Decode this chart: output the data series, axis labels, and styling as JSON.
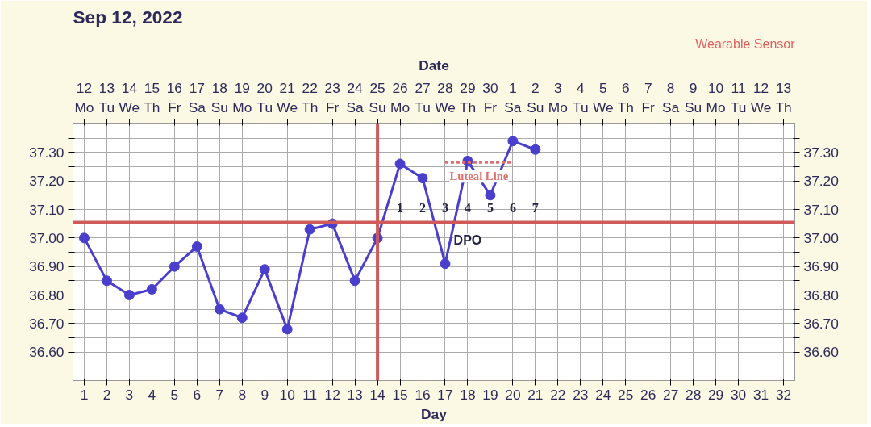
{
  "chart_data": {
    "type": "line",
    "title": "Sep 12, 2022",
    "xlabel": "Day",
    "x2label": "Date",
    "x": [
      1,
      2,
      3,
      4,
      5,
      6,
      7,
      8,
      9,
      10,
      11,
      12,
      13,
      14,
      15,
      16,
      17,
      18,
      19,
      20,
      21
    ],
    "series": [
      {
        "color": "#4a3fcc",
        "values": [
          37.0,
          36.85,
          36.8,
          36.82,
          36.9,
          36.97,
          36.75,
          36.72,
          36.89,
          36.68,
          37.03,
          37.05,
          36.85,
          37.0,
          37.26,
          37.21,
          36.91,
          37.27,
          37.15,
          37.34,
          37.31
        ],
        "marker": "circle",
        "line_style": "solid"
      },
      {
        "name": "Luteal Line",
        "color": "#e07070",
        "x": [
          17,
          20
        ],
        "values": [
          37.265,
          37.265
        ],
        "marker": "none",
        "line_style": "dashed"
      }
    ],
    "xlim": [
      0.5,
      32.5
    ],
    "xticks": [
      1,
      2,
      3,
      4,
      5,
      6,
      7,
      8,
      9,
      10,
      11,
      12,
      13,
      14,
      15,
      16,
      17,
      18,
      19,
      20,
      21,
      22,
      23,
      24,
      25,
      26,
      27,
      28,
      29,
      30,
      31,
      32
    ],
    "x2lim": [
      "2022-09-11T12:00",
      "2022-10-13T12:00"
    ],
    "x2ticks": [
      {
        "value": "2022-09-12",
        "label": "12\nMo"
      },
      {
        "value": "2022-09-13",
        "label": "13\nTu"
      },
      {
        "value": "2022-09-14",
        "label": "14\nWe"
      },
      {
        "value": "2022-09-15",
        "label": "15\nTh"
      },
      {
        "value": "2022-09-16",
        "label": "16\nFr"
      },
      {
        "value": "2022-09-17",
        "label": "17\nSa"
      },
      {
        "value": "2022-09-18",
        "label": "18\nSu"
      },
      {
        "value": "2022-09-19",
        "label": "19\nMo"
      },
      {
        "value": "2022-09-20",
        "label": "20\nTu"
      },
      {
        "value": "2022-09-21",
        "label": "21\nWe"
      },
      {
        "value": "2022-09-22",
        "label": "22\nTh"
      },
      {
        "value": "2022-09-23",
        "label": "23\nFr"
      },
      {
        "value": "2022-09-24",
        "label": "24\nSa"
      },
      {
        "value": "2022-09-25",
        "label": "25\nSu"
      },
      {
        "value": "2022-09-26",
        "label": "26\nMo"
      },
      {
        "value": "2022-09-27",
        "label": "27\nTu"
      },
      {
        "value": "2022-09-28",
        "label": "28\nWe"
      },
      {
        "value": "2022-09-29",
        "label": "29\nTh"
      },
      {
        "value": "2022-09-30",
        "label": "30\nFr"
      },
      {
        "value": "2022-10-01",
        "label": "1\nSa"
      },
      {
        "value": "2022-10-02",
        "label": "2\nSu"
      },
      {
        "value": "2022-10-03",
        "label": "3\nMo"
      },
      {
        "value": "2022-10-04",
        "label": "4\nTu"
      },
      {
        "value": "2022-10-05",
        "label": "5\nWe"
      },
      {
        "value": "2022-10-06",
        "label": "6\nTh"
      },
      {
        "value": "2022-10-07",
        "label": "7\nFr"
      },
      {
        "value": "2022-10-08",
        "label": "8\nSa"
      },
      {
        "value": "2022-10-09",
        "label": "9\nSu"
      },
      {
        "value": "2022-10-10",
        "label": "10\nMo"
      },
      {
        "value": "2022-10-11",
        "label": "11\nTu"
      },
      {
        "value": "2022-10-12",
        "label": "12\nWe"
      },
      {
        "value": "2022-10-13",
        "label": "13\nTh"
      }
    ],
    "ylim": [
      36.5,
      37.4
    ],
    "yticks": [
      {
        "value": 36.55,
        "label": null
      },
      {
        "value": 36.6,
        "label": "36.60"
      },
      {
        "value": 36.65,
        "label": null
      },
      {
        "value": 36.7,
        "label": "36.70"
      },
      {
        "value": 36.75,
        "label": null
      },
      {
        "value": 36.8,
        "label": "36.80"
      },
      {
        "value": 36.85,
        "label": null
      },
      {
        "value": 36.9,
        "label": "36.90"
      },
      {
        "value": 36.95,
        "label": null
      },
      {
        "value": 37.0,
        "label": "37.00"
      },
      {
        "value": 37.05,
        "label": null
      },
      {
        "value": 37.1,
        "label": "37.10"
      },
      {
        "value": 37.15,
        "label": null
      },
      {
        "value": 37.2,
        "label": "37.20"
      },
      {
        "value": 37.25,
        "label": null
      },
      {
        "value": 37.3,
        "label": "37.30"
      },
      {
        "value": 37.35,
        "label": null
      }
    ],
    "y2lim": [
      36.5,
      37.4
    ],
    "y2ticks": [
      {
        "value": 36.55,
        "label": null
      },
      {
        "value": 36.6,
        "label": "36.60"
      },
      {
        "value": 36.65,
        "label": null
      },
      {
        "value": 36.7,
        "label": "36.70"
      },
      {
        "value": 36.75,
        "label": null
      },
      {
        "value": 36.8,
        "label": "36.80"
      },
      {
        "value": 36.85,
        "label": null
      },
      {
        "value": 36.9,
        "label": "36.90"
      },
      {
        "value": 36.95,
        "label": null
      },
      {
        "value": 37.0,
        "label": "37.00"
      },
      {
        "value": 37.05,
        "label": null
      },
      {
        "value": 37.1,
        "label": "37.10"
      },
      {
        "value": 37.15,
        "label": null
      },
      {
        "value": 37.2,
        "label": "37.20"
      },
      {
        "value": 37.25,
        "label": null
      },
      {
        "value": 37.3,
        "label": "37.30"
      },
      {
        "value": 37.35,
        "label": null
      }
    ],
    "ref_lines": [
      {
        "axis": "y",
        "value": 37.055,
        "color": "#d05a5a"
      },
      {
        "axis": "x",
        "value": 14,
        "color": "#d05a5a"
      }
    ],
    "annotations": [
      "Wearable Sensor",
      "1",
      "2",
      "3",
      "4",
      "5",
      "6",
      "7",
      "DPO"
    ],
    "grid": true
  }
}
